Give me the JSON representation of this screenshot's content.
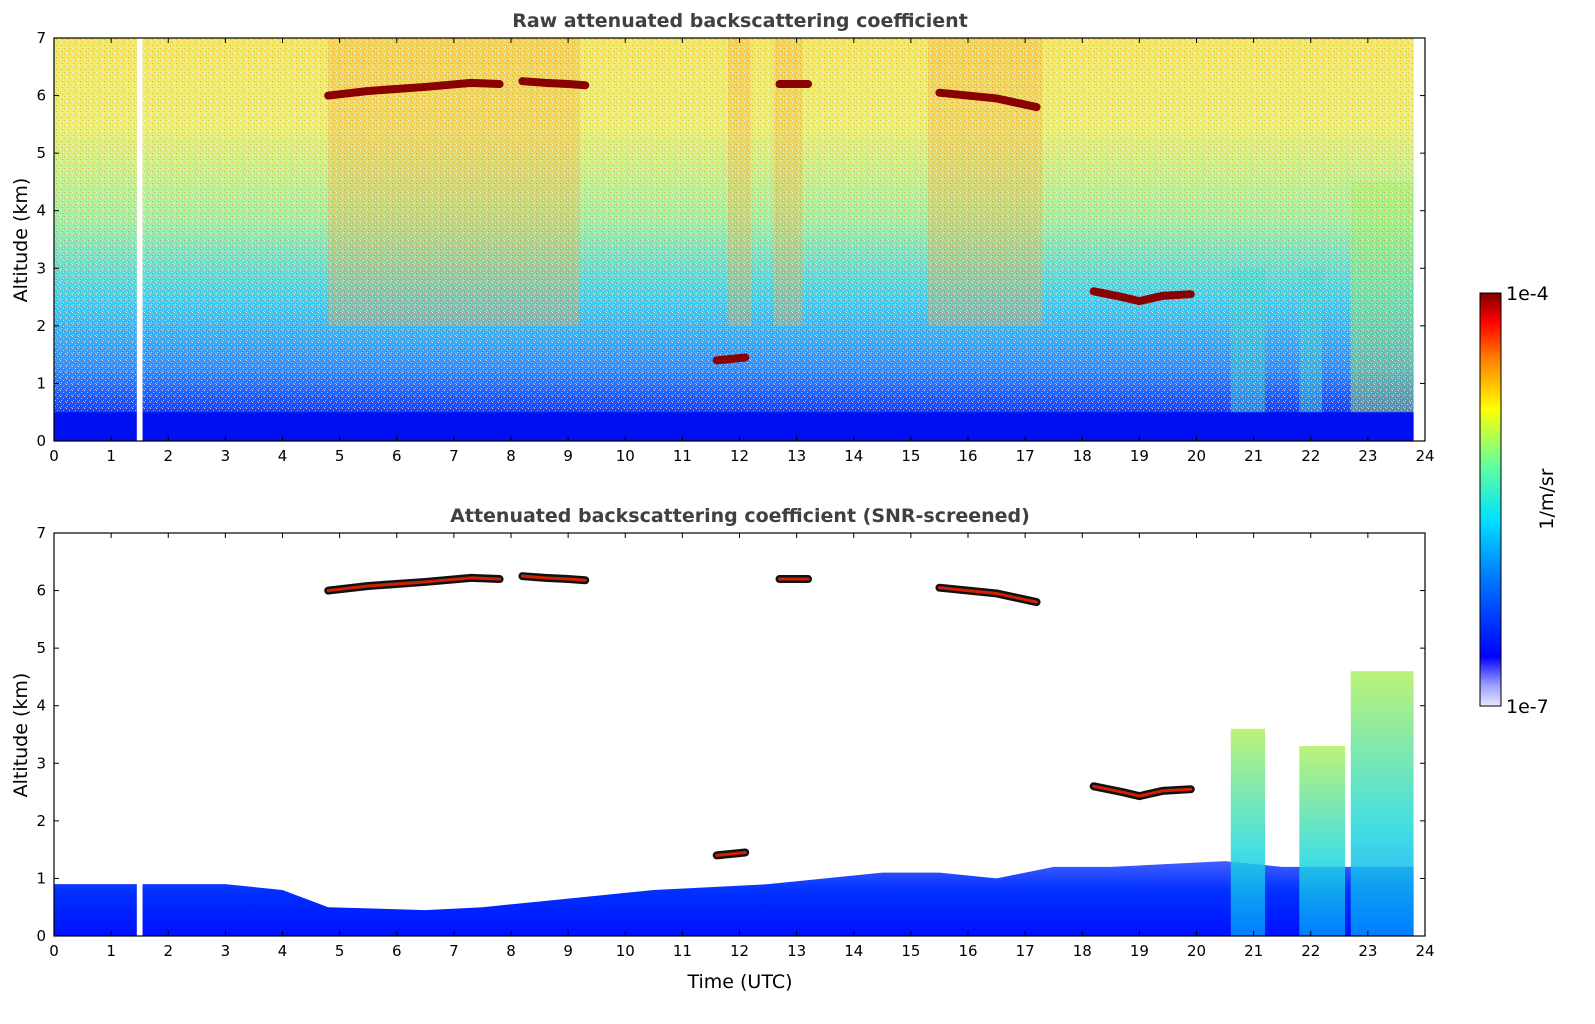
{
  "chart_data": [
    {
      "type": "heatmap",
      "title": "Raw attenuated backscattering coefficient",
      "xlabel": "",
      "ylabel": "Altitude (km)",
      "xlim": [
        0,
        24
      ],
      "ylim": [
        0,
        7
      ],
      "x_ticks": [
        "0",
        "1",
        "2",
        "3",
        "4",
        "5",
        "6",
        "7",
        "8",
        "9",
        "10",
        "11",
        "12",
        "13",
        "14",
        "15",
        "16",
        "17",
        "18",
        "19",
        "20",
        "21",
        "22",
        "23",
        "24"
      ],
      "y_ticks": [
        "0",
        "1",
        "2",
        "3",
        "4",
        "5",
        "6",
        "7"
      ],
      "data_gap": {
        "x_range": [
          1.45,
          1.55
        ]
      },
      "cloud_layers": [
        {
          "x": [
            4.8,
            5.5,
            6.5,
            7.3,
            7.8
          ],
          "y": [
            6.0,
            6.08,
            6.15,
            6.22,
            6.2
          ]
        },
        {
          "x": [
            8.2,
            8.6,
            9.0,
            9.3
          ],
          "y": [
            6.25,
            6.22,
            6.2,
            6.18
          ]
        },
        {
          "x": [
            12.7,
            13.2
          ],
          "y": [
            6.2,
            6.2
          ]
        },
        {
          "x": [
            15.5,
            16.0,
            16.5,
            17.2
          ],
          "y": [
            6.05,
            6.0,
            5.95,
            5.8
          ]
        },
        {
          "x": [
            18.2,
            18.7,
            19.0,
            19.4,
            19.9
          ],
          "y": [
            2.6,
            2.5,
            2.43,
            2.52,
            2.55
          ]
        },
        {
          "x": [
            11.6,
            12.1
          ],
          "y": [
            1.4,
            1.45
          ]
        }
      ]
    },
    {
      "type": "heatmap",
      "title": "Attenuated backscattering coefficient (SNR-screened)",
      "xlabel": "Time (UTC)",
      "ylabel": "Altitude (km)",
      "xlim": [
        0,
        24
      ],
      "ylim": [
        0,
        7
      ],
      "x_ticks": [
        "0",
        "1",
        "2",
        "3",
        "4",
        "5",
        "6",
        "7",
        "8",
        "9",
        "10",
        "11",
        "12",
        "13",
        "14",
        "15",
        "16",
        "17",
        "18",
        "19",
        "20",
        "21",
        "22",
        "23",
        "24"
      ],
      "y_ticks": [
        "0",
        "1",
        "2",
        "3",
        "4",
        "5",
        "6",
        "7"
      ],
      "data_gap": {
        "x_range": [
          1.45,
          1.55
        ]
      },
      "boundary_layer_top": {
        "x": [
          0,
          1,
          2,
          3,
          4,
          4.8,
          5.5,
          6.5,
          7.5,
          8.5,
          9.5,
          10.5,
          11.5,
          12.5,
          13.5,
          14.5,
          15.5,
          16.5,
          17.5,
          18.5,
          19.5,
          20.5,
          21.5,
          22.5,
          23.5,
          23.8
        ],
        "y": [
          0.9,
          0.9,
          0.9,
          0.9,
          0.8,
          0.5,
          0.48,
          0.45,
          0.5,
          0.6,
          0.7,
          0.8,
          0.85,
          0.9,
          1.0,
          1.1,
          1.1,
          1.0,
          1.2,
          1.2,
          1.25,
          1.3,
          1.2,
          1.2,
          1.2,
          1.2
        ]
      },
      "aerosol_plumes": [
        {
          "x_range": [
            20.6,
            21.2
          ],
          "top": 3.6
        },
        {
          "x_range": [
            21.8,
            22.6
          ],
          "top": 3.3
        },
        {
          "x_range": [
            22.7,
            23.8
          ],
          "top": 4.6
        }
      ]
    }
  ],
  "colorbar": {
    "label": "1/m/sr",
    "max_label": "1e-4",
    "min_label": "1e-7",
    "scale": "log",
    "range": [
      1e-07,
      0.0001
    ],
    "colormap": "jet"
  }
}
